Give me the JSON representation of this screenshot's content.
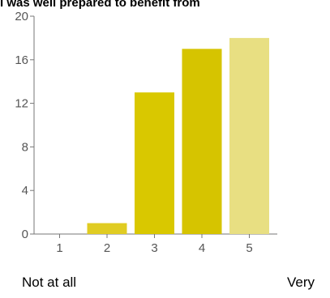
{
  "chart_data": {
    "type": "bar",
    "title": "I was well prepared to benefit from",
    "categories": [
      "1",
      "2",
      "3",
      "4",
      "5"
    ],
    "values": [
      0,
      1,
      13,
      17,
      18
    ],
    "colors": [
      "#e5d24a",
      "#e0cc22",
      "#d9c800",
      "#d6c400",
      "#e8df82"
    ],
    "ylim": [
      0,
      20
    ],
    "yticks": [
      0,
      4,
      8,
      12,
      16,
      20
    ],
    "xlabel": "",
    "ylabel": "",
    "grid": false,
    "legend": "none"
  },
  "scale": {
    "low_label": "Not at all",
    "high_label": "Very"
  },
  "colors": {
    "axis": "#777777",
    "tick_text": "#555555"
  }
}
